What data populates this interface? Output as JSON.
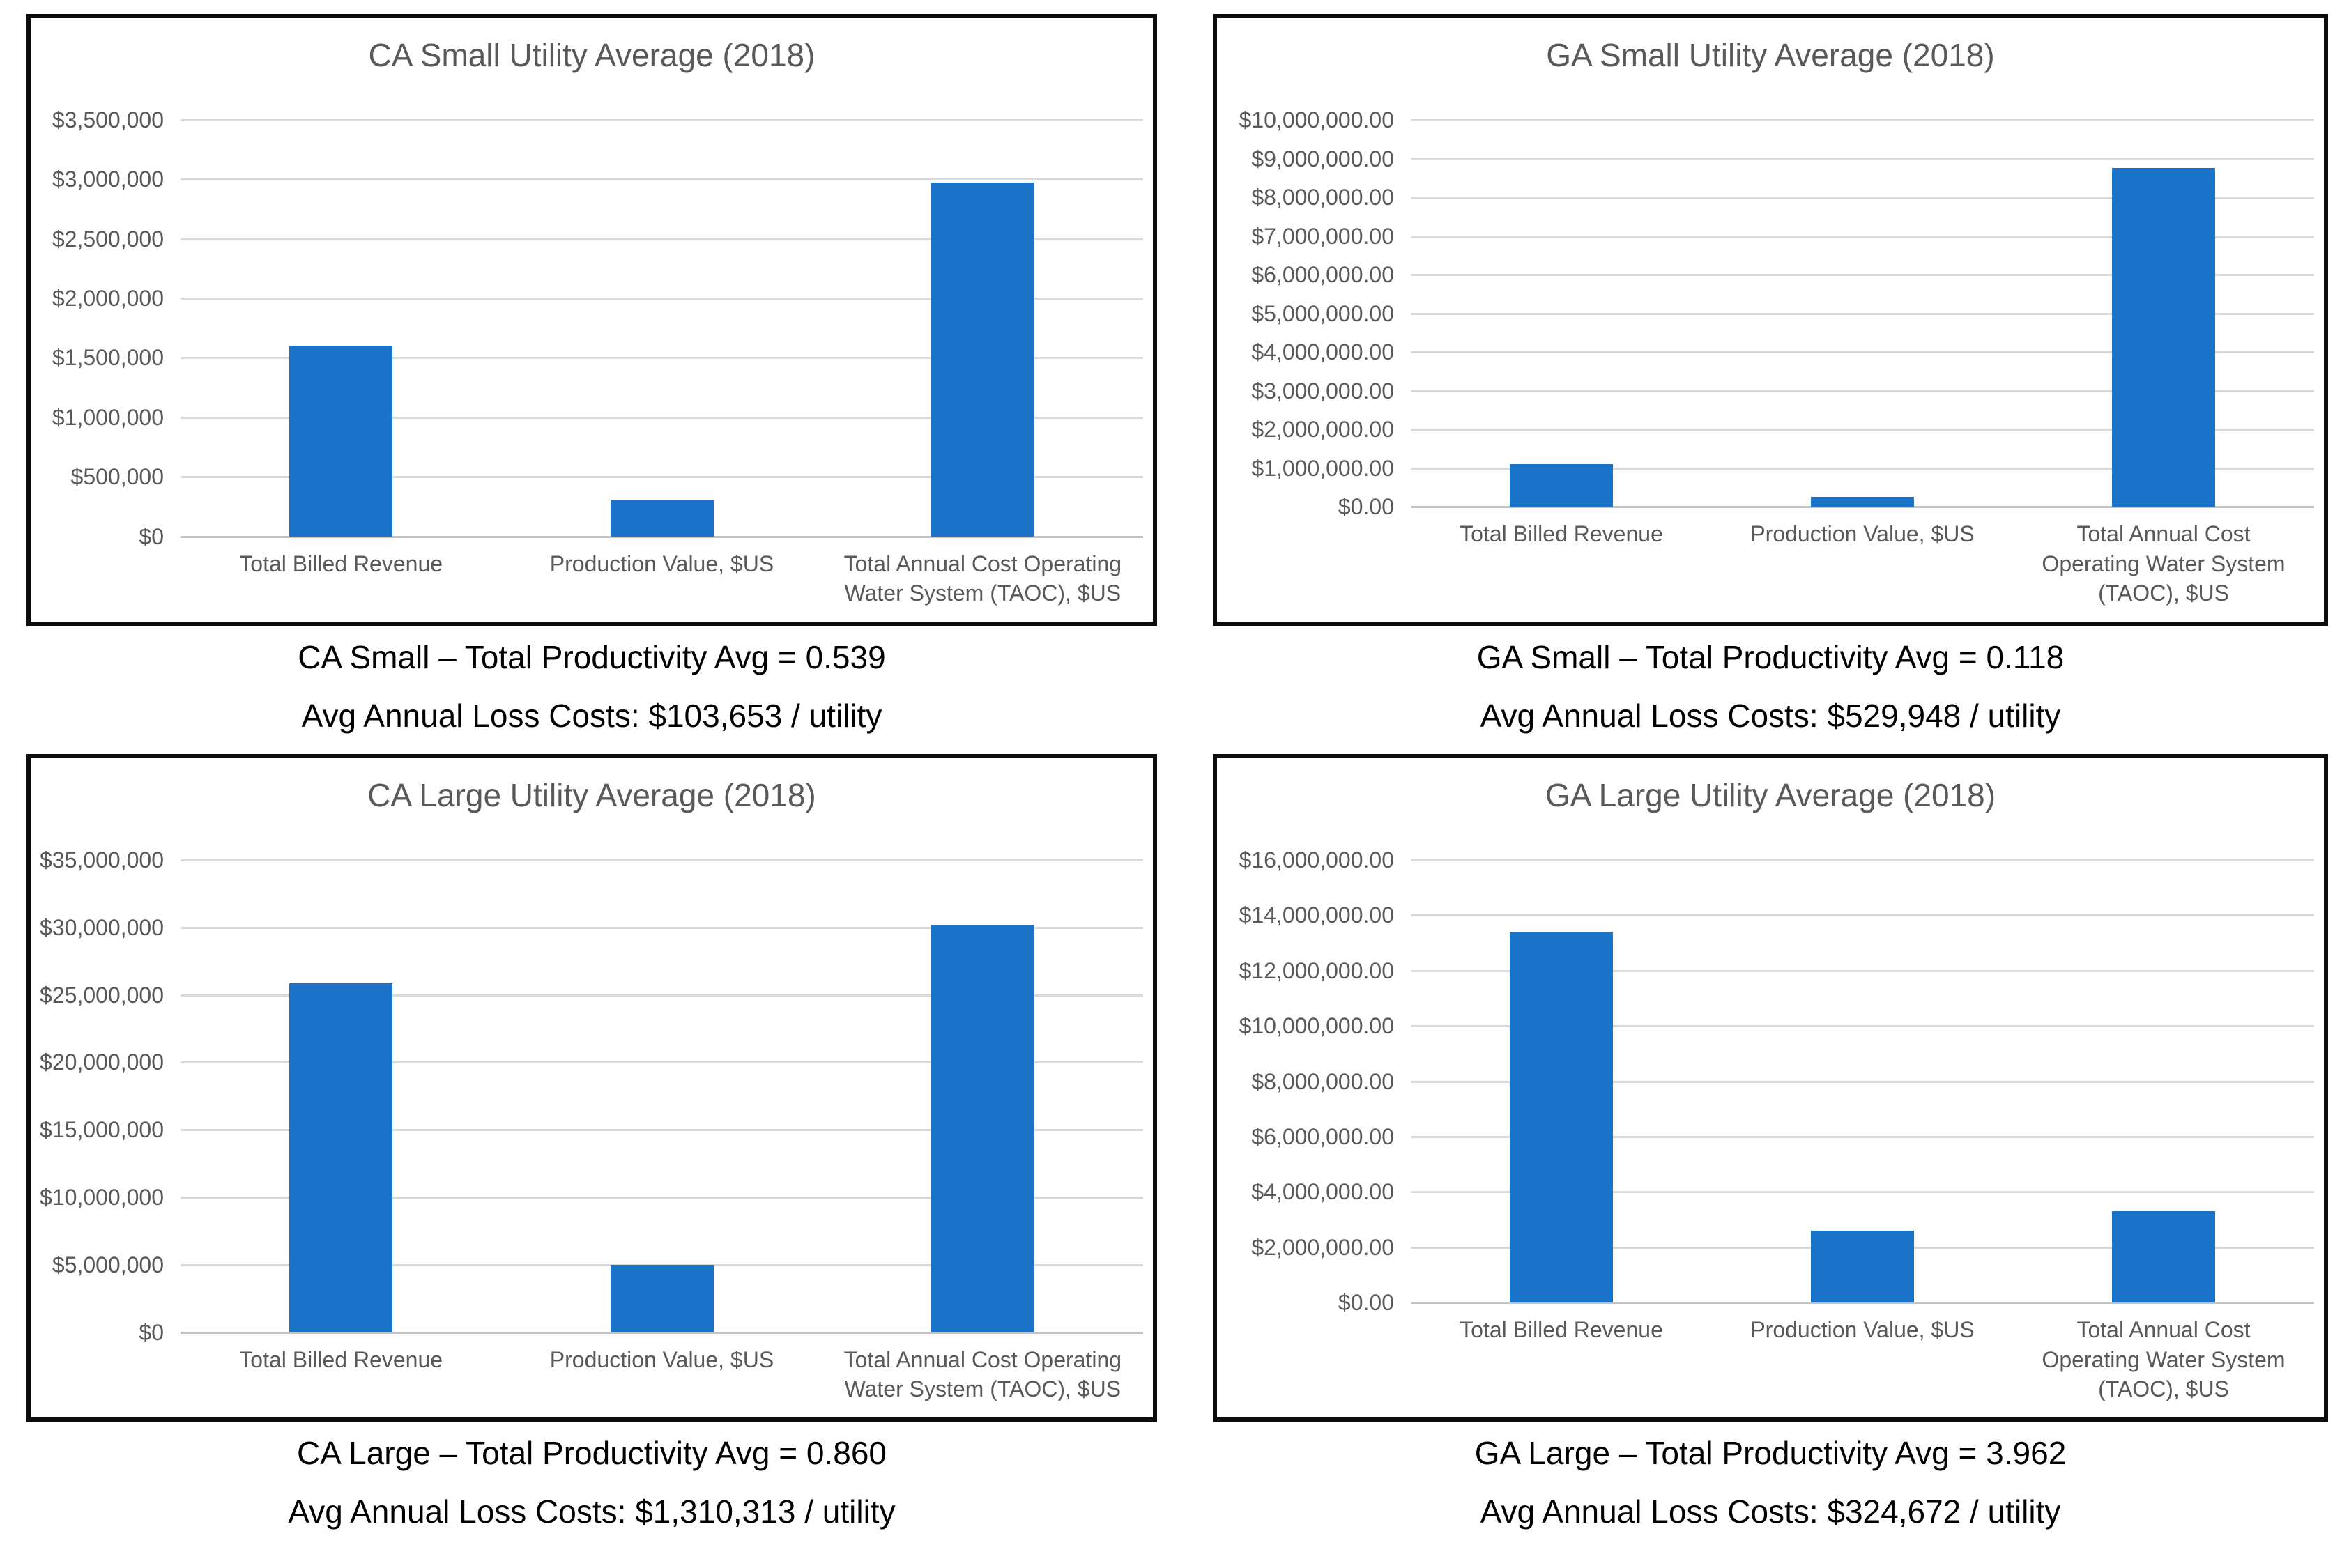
{
  "colors": {
    "bar": "#1A73C8",
    "axis_text": "#595959",
    "title_text": "#595959",
    "gridline": "#D9D9D9",
    "panel_border": "#0D0D0D",
    "caption_text": "#000000"
  },
  "chart_data": [
    {
      "id": "ca-small",
      "type": "bar",
      "title": "CA Small Utility Average (2018)",
      "categories": [
        "Total Billed Revenue",
        "Production Value, $US",
        "Total Annual Cost Operating\nWater System (TAOC), $US"
      ],
      "values": [
        1600000,
        310000,
        2970000
      ],
      "ylim": [
        0,
        3500000
      ],
      "y_ticks": [
        "$3,500,000",
        "$3,000,000",
        "$2,500,000",
        "$2,000,000",
        "$1,500,000",
        "$1,000,000",
        "$500,000",
        "$0"
      ],
      "xlabel": "",
      "ylabel": "",
      "grid": true,
      "legend": false
    },
    {
      "id": "ga-small",
      "type": "bar",
      "title": "GA Small Utility Average (2018)",
      "categories": [
        "Total Billed Revenue",
        "Production Value, $US",
        "Total Annual Cost\nOperating Water System\n(TAOC), $US"
      ],
      "values": [
        1100000,
        250000,
        8750000
      ],
      "ylim": [
        0,
        10000000
      ],
      "y_ticks": [
        "$10,000,000.00",
        "$9,000,000.00",
        "$8,000,000.00",
        "$7,000,000.00",
        "$6,000,000.00",
        "$5,000,000.00",
        "$4,000,000.00",
        "$3,000,000.00",
        "$2,000,000.00",
        "$1,000,000.00",
        "$0.00"
      ],
      "xlabel": "",
      "ylabel": "",
      "grid": true,
      "legend": false
    },
    {
      "id": "ca-large",
      "type": "bar",
      "title": "CA Large Utility Average (2018)",
      "categories": [
        "Total Billed Revenue",
        "Production Value, $US",
        "Total Annual Cost Operating\nWater System (TAOC), $US"
      ],
      "values": [
        25850000,
        5000000,
        30200000
      ],
      "ylim": [
        0,
        35000000
      ],
      "y_ticks": [
        "$35,000,000",
        "$30,000,000",
        "$25,000,000",
        "$20,000,000",
        "$15,000,000",
        "$10,000,000",
        "$5,000,000",
        "$0"
      ],
      "xlabel": "",
      "ylabel": "",
      "grid": true,
      "legend": false
    },
    {
      "id": "ga-large",
      "type": "bar",
      "title": "GA Large Utility Average (2018)",
      "categories": [
        "Total Billed Revenue",
        "Production Value, $US",
        "Total Annual Cost\nOperating Water System\n(TAOC), $US"
      ],
      "values": [
        13400000,
        2600000,
        3300000
      ],
      "ylim": [
        0,
        16000000
      ],
      "y_ticks": [
        "$16,000,000.00",
        "$14,000,000.00",
        "$12,000,000.00",
        "$10,000,000.00",
        "$8,000,000.00",
        "$6,000,000.00",
        "$4,000,000.00",
        "$2,000,000.00",
        "$0.00"
      ],
      "xlabel": "",
      "ylabel": "",
      "grid": true,
      "legend": false
    }
  ],
  "captions": {
    "ca_small": {
      "productivity": "CA Small – Total Productivity Avg = 0.539",
      "loss": "Avg Annual Loss Costs: $103,653 / utility"
    },
    "ga_small": {
      "productivity": "GA Small – Total Productivity Avg = 0.118",
      "loss": "Avg Annual Loss Costs: $529,948 / utility"
    },
    "ca_large": {
      "productivity": "CA Large – Total Productivity Avg = 0.860",
      "loss": "Avg Annual Loss Costs: $1,310,313 / utility"
    },
    "ga_large": {
      "productivity": "GA Large – Total Productivity Avg = 3.962",
      "loss": "Avg Annual Loss Costs: $324,672 / utility"
    }
  }
}
